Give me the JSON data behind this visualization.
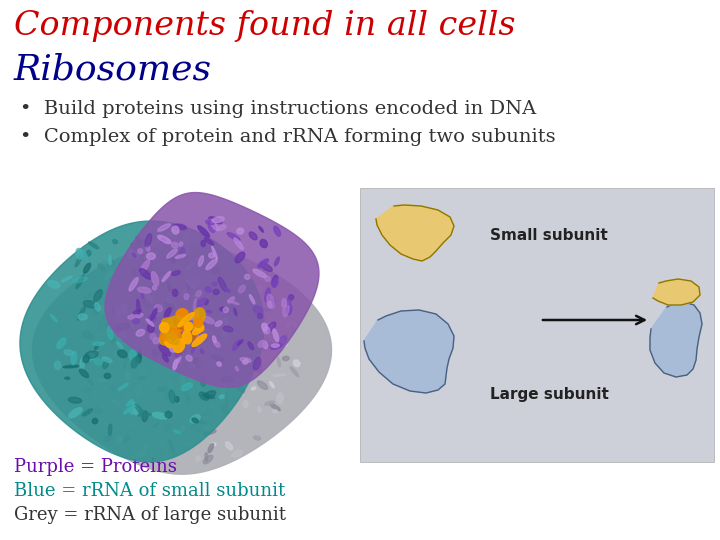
{
  "title": "Components found in all cells",
  "subtitle": "Ribosomes",
  "title_color": "#cc0000",
  "subtitle_color": "#00008b",
  "bullet1": "Build proteins using instructions encoded in DNA",
  "bullet2": "Complex of protein and rRNA forming two subunits",
  "bullet_color": "#333333",
  "legend1_text": "Purple = Proteins",
  "legend1_color": "#6a0dad",
  "legend2_text": "Blue = rRNA of small subunit",
  "legend2_color": "#008b8b",
  "legend3_text": "Grey = rRNA of large subunit",
  "legend3_color": "#333333",
  "background_color": "#ffffff",
  "right_bg_color": "#d8dce0",
  "small_subunit_color": "#e8c870",
  "large_subunit_color": "#a8bcd8",
  "small_subunit_outline": "#8b7800",
  "large_subunit_outline": "#4a6080",
  "arrow_color": "#111111",
  "label_color": "#222222",
  "title_fontsize": 24,
  "subtitle_fontsize": 26,
  "bullet_fontsize": 14,
  "legend_fontsize": 13,
  "label_fontsize": 11
}
